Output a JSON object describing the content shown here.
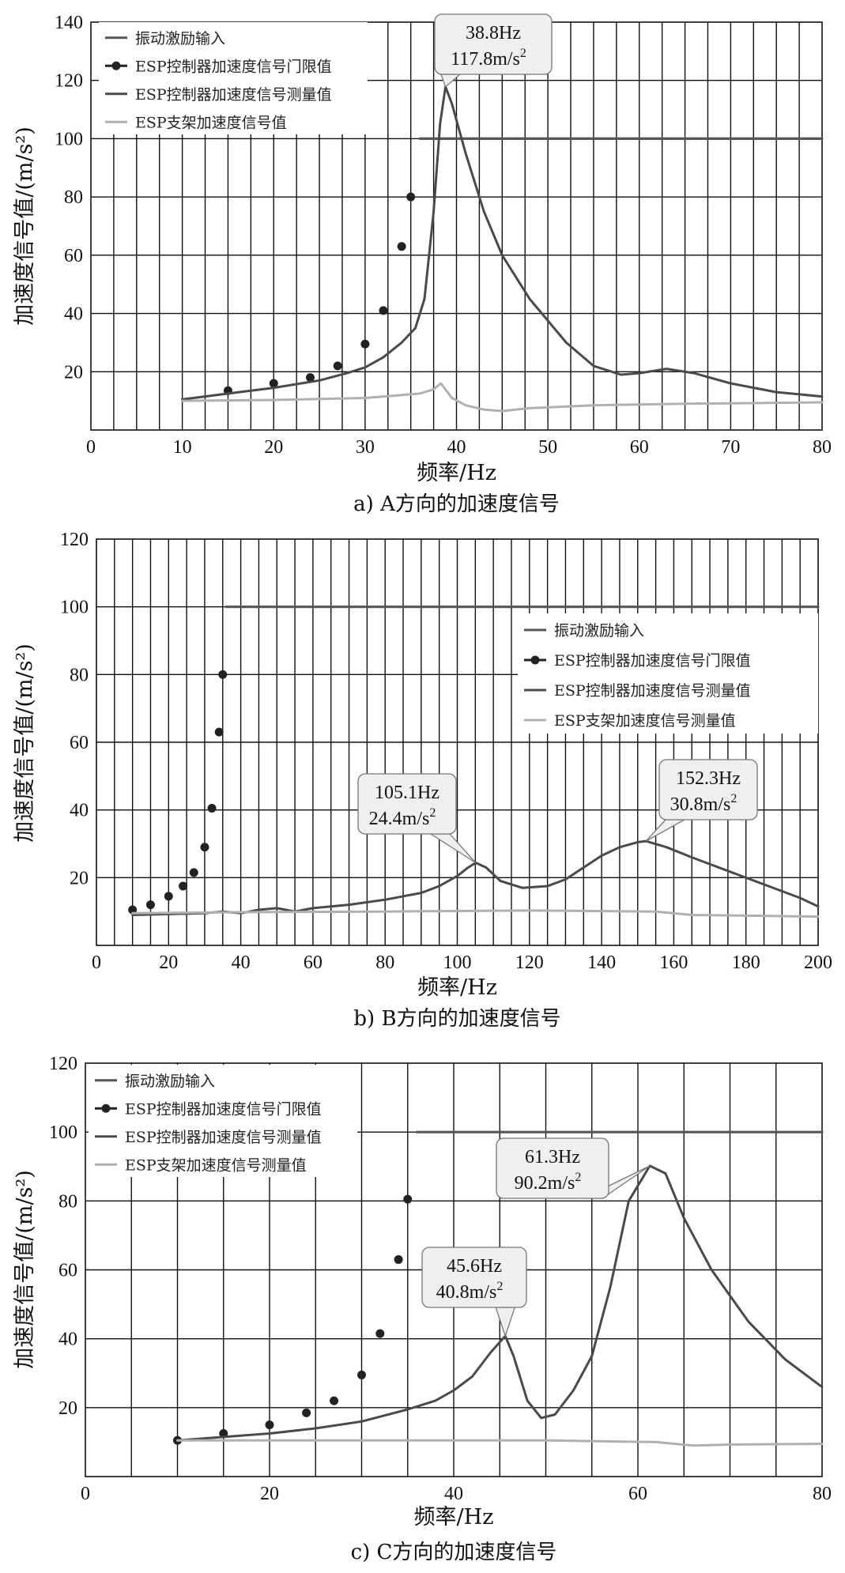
{
  "chart_data": [
    {
      "type": "line",
      "caption": "a) A方向的加速度信号",
      "xlabel": "频率/Hz",
      "ylabel": "加速度信号值/(m/s²)",
      "xlim": [
        0,
        80
      ],
      "ylim": [
        0,
        140
      ],
      "xticks": [
        0,
        10,
        20,
        30,
        40,
        50,
        60,
        70,
        80
      ],
      "yticks": [
        20,
        40,
        60,
        80,
        100,
        120,
        140
      ],
      "grid": true,
      "legend_position": "top-left",
      "series": [
        {
          "name": "振动激励输入",
          "style": "line",
          "color": "#555555",
          "x": [
            36,
            80
          ],
          "y": [
            100,
            100
          ]
        },
        {
          "name": "ESP控制器加速度信号门限值",
          "style": "dots",
          "color": "#222222",
          "x": [
            15,
            20,
            24,
            27,
            30,
            32,
            34,
            35
          ],
          "y": [
            13.5,
            16,
            18,
            22,
            29.5,
            41,
            63,
            80
          ]
        },
        {
          "name": "ESP控制器加速度信号测量值",
          "style": "line",
          "color": "#4a4a4a",
          "x": [
            10,
            15,
            20,
            25,
            28,
            30,
            32,
            34,
            35.5,
            36.5,
            37.5,
            38.2,
            38.8,
            39.5,
            41,
            43,
            45,
            48,
            52,
            55,
            58,
            60,
            63,
            66,
            70,
            75,
            80
          ],
          "y": [
            10.5,
            12.5,
            14.5,
            17,
            19.5,
            21.5,
            25,
            30,
            35,
            45,
            75,
            105,
            117.8,
            112,
            95,
            75,
            60,
            45,
            30,
            22,
            19,
            19.5,
            21,
            19.5,
            16,
            13,
            11.5
          ]
        },
        {
          "name": "ESP支架加速度信号值",
          "style": "line",
          "color": "#b0b0b0",
          "x": [
            10,
            20,
            30,
            36,
            37.5,
            38.3,
            39.5,
            41,
            43,
            45,
            48,
            55,
            65,
            80
          ],
          "y": [
            10,
            10.3,
            11,
            12.5,
            14,
            16,
            11,
            8.5,
            7,
            6.5,
            7.5,
            8.5,
            9,
            9.5
          ]
        }
      ],
      "annotations": [
        {
          "line1": "38.8Hz",
          "line2": "117.8m/s",
          "sup": "2",
          "x": 38.8,
          "y": 117.8
        }
      ]
    },
    {
      "type": "line",
      "caption": "b) B方向的加速度信号",
      "xlabel": "频率/Hz",
      "ylabel": "加速度信号值/(m/s²)",
      "xlim": [
        0,
        200
      ],
      "ylim": [
        0,
        120
      ],
      "xticks": [
        0,
        20,
        40,
        60,
        80,
        100,
        120,
        140,
        160,
        180,
        200
      ],
      "yticks": [
        20,
        40,
        60,
        80,
        100,
        120
      ],
      "grid": true,
      "legend_position": "top-right",
      "series": [
        {
          "name": "振动激励输入",
          "style": "line",
          "color": "#555555",
          "x": [
            36,
            200
          ],
          "y": [
            100,
            100
          ]
        },
        {
          "name": "ESP控制器加速度信号门限值",
          "style": "dots",
          "color": "#222222",
          "x": [
            10,
            15,
            20,
            24,
            27,
            30,
            32,
            34,
            35
          ],
          "y": [
            10.5,
            12,
            14.5,
            17.5,
            21.5,
            29,
            40.5,
            63,
            80
          ]
        },
        {
          "name": "ESP控制器加速度信号测量值",
          "style": "line",
          "color": "#4a4a4a",
          "x": [
            10,
            30,
            35,
            40,
            45,
            50,
            55,
            60,
            70,
            80,
            90,
            95,
            100,
            103,
            105.1,
            108,
            112,
            118,
            125,
            130,
            135,
            140,
            145,
            150,
            152.3,
            158,
            165,
            175,
            185,
            195,
            200
          ],
          "y": [
            9,
            9.5,
            10,
            9.5,
            10.5,
            11,
            10,
            11,
            12,
            13.5,
            15.5,
            17.5,
            20.5,
            23,
            24.4,
            23,
            19,
            17,
            17.5,
            19.5,
            23,
            26.5,
            29,
            30.5,
            30.8,
            29,
            26,
            22,
            18,
            14,
            11.5
          ]
        },
        {
          "name": "ESP支架加速度信号测量值",
          "style": "line",
          "color": "#b0b0b0",
          "x": [
            10,
            40,
            80,
            120,
            155,
            165,
            200
          ],
          "y": [
            9.5,
            9.8,
            10,
            10.3,
            10,
            9,
            8.5
          ]
        }
      ],
      "annotations": [
        {
          "line1": "105.1Hz",
          "line2": "24.4m/s",
          "sup": "2",
          "x": 105.1,
          "y": 24.4
        },
        {
          "line1": "152.3Hz",
          "line2": "30.8m/s",
          "sup": "2",
          "x": 152.3,
          "y": 30.8
        }
      ]
    },
    {
      "type": "line",
      "caption": "c) C方向的加速度信号",
      "xlabel": "频率/Hz",
      "ylabel": "加速度信号值/(m/s²)",
      "xlim": [
        0,
        80
      ],
      "ylim": [
        0,
        120
      ],
      "xticks": [
        0,
        20,
        40,
        60,
        80
      ],
      "yticks": [
        20,
        40,
        60,
        80,
        100,
        120
      ],
      "grid": true,
      "legend_position": "top-left",
      "series": [
        {
          "name": "振动激励输入",
          "style": "line",
          "color": "#555555",
          "x": [
            36,
            80
          ],
          "y": [
            100,
            100
          ]
        },
        {
          "name": "ESP控制器加速度信号门限值",
          "style": "dots",
          "color": "#222222",
          "x": [
            10,
            15,
            20,
            24,
            27,
            30,
            32,
            34,
            35
          ],
          "y": [
            10.5,
            12.5,
            15,
            18.5,
            22,
            29.5,
            41.5,
            63,
            80.5
          ]
        },
        {
          "name": "ESP控制器加速度信号测量值",
          "style": "line",
          "color": "#4a4a4a",
          "x": [
            10,
            15,
            20,
            25,
            30,
            35,
            38,
            40,
            42,
            44,
            45.6,
            46.5,
            48,
            49.5,
            51,
            53,
            55,
            57,
            59,
            61.3,
            63,
            65,
            68,
            72,
            76,
            80
          ],
          "y": [
            10.5,
            11.5,
            12.5,
            14,
            16,
            19.5,
            22,
            25,
            29,
            36,
            40.8,
            35,
            22,
            17,
            18,
            25,
            35,
            55,
            80,
            90.2,
            88,
            75,
            60,
            45,
            34,
            26
          ]
        },
        {
          "name": "ESP支架加速度信号测量值",
          "style": "line",
          "color": "#b0b0b0",
          "x": [
            10,
            30,
            50,
            62,
            66,
            70,
            80
          ],
          "y": [
            10.5,
            10.5,
            10.5,
            10,
            9,
            9.3,
            9.5
          ]
        }
      ],
      "annotations": [
        {
          "line1": "45.6Hz",
          "line2": "40.8m/s",
          "sup": "2",
          "x": 45.6,
          "y": 40.8
        },
        {
          "line1": "61.3Hz",
          "line2": "90.2m/s",
          "sup": "2",
          "x": 61.3,
          "y": 90.2
        }
      ]
    }
  ]
}
